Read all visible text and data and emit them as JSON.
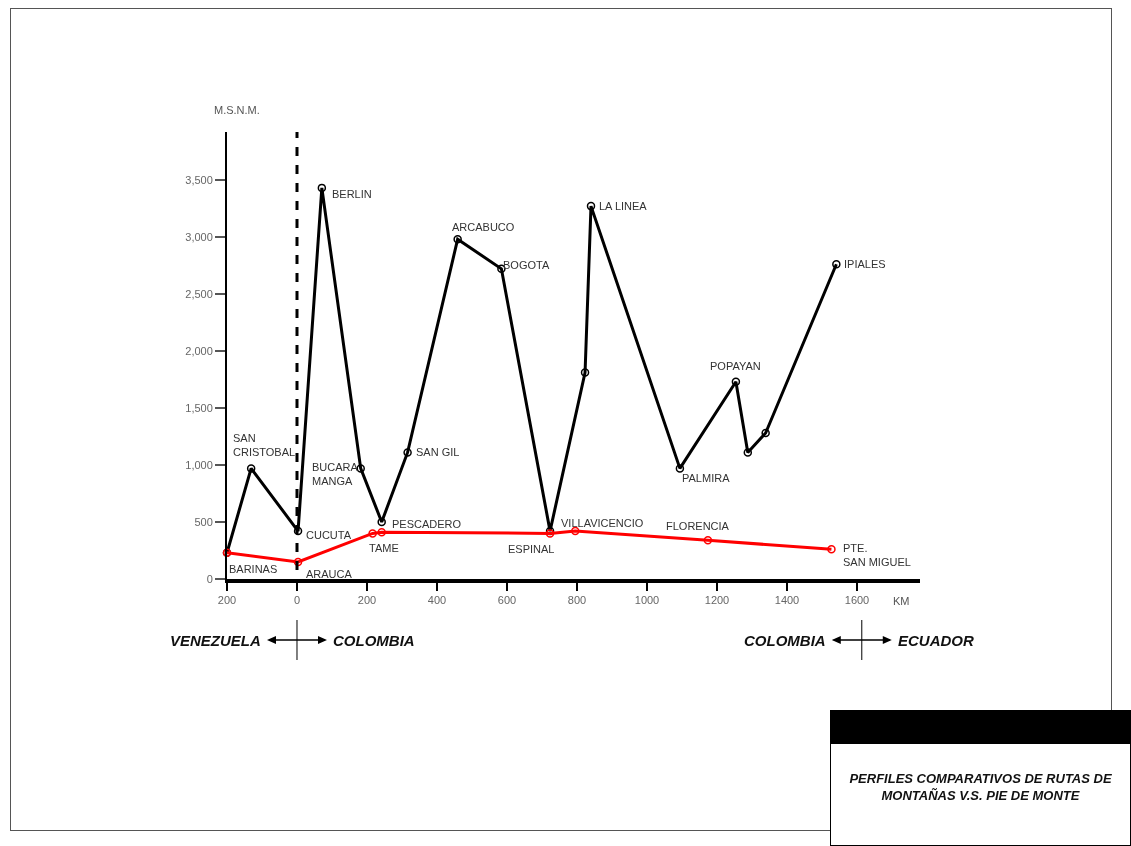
{
  "chart_data": {
    "type": "line",
    "title": "PERFILES COMPARATIVOS DE RUTAS DE MONTAÑAS V.S. PIE DE MONTE",
    "xlabel": "KM",
    "ylabel": "M.S.N.M.",
    "series": [
      {
        "color": "#000000",
        "x": [
          -200,
          -131,
          3,
          71,
          182,
          242,
          316,
          459,
          584,
          723,
          823,
          840,
          1094,
          1254,
          1288,
          1339,
          1541
        ],
        "values": [
          230,
          970,
          420,
          3430,
          970,
          500,
          1110,
          2980,
          2720,
          420,
          1810,
          3270,
          970,
          1730,
          1110,
          1280,
          2760
        ]
      },
      {
        "color": "#ff0000",
        "x": [
          -200,
          3,
          216,
          242,
          723,
          795,
          1174,
          1527
        ],
        "values": [
          230,
          150,
          400,
          410,
          400,
          420,
          340,
          260
        ]
      }
    ],
    "marker": "circle",
    "line_style": "solid",
    "grid": false,
    "xlim": [
      -200,
      1780
    ],
    "ylim": [
      0,
      3920
    ],
    "xticks": [
      {
        "value": -200,
        "label": "200"
      },
      0,
      200,
      400,
      600,
      800,
      1000,
      1200,
      1400,
      1600
    ],
    "yticks": [
      0,
      500,
      {
        "value": 1000,
        "label": "1,000"
      },
      {
        "value": 1500,
        "label": "1,500"
      },
      {
        "value": 2000,
        "label": "2,000"
      },
      {
        "value": 2500,
        "label": "2,500"
      },
      {
        "value": 3000,
        "label": "3,000"
      },
      {
        "value": 3500,
        "label": "3,500"
      }
    ],
    "ref_lines": [
      {
        "axis": "x",
        "value": 0,
        "line_style": "dashed",
        "color": "#000000"
      }
    ],
    "annotations": [
      {
        "text": "BARINAS",
        "x": -200,
        "y": 228
      },
      {
        "text": "SAN\nCRISTOBAL",
        "x": -131,
        "y": 974
      },
      {
        "text": "CUCUTA",
        "x": 3,
        "y": 420
      },
      {
        "text": "BERLIN",
        "x": 71,
        "y": 3430
      },
      {
        "text": "BUCARA\nMANGA",
        "x": 182,
        "y": 965
      },
      {
        "text": "PESCADERO",
        "x": 242,
        "y": 500
      },
      {
        "text": "SAN GIL",
        "x": 316,
        "y": 1114
      },
      {
        "text": "ARCABUCO",
        "x": 459,
        "y": 2982
      },
      {
        "text": "BOGOTA",
        "x": 584,
        "y": 2719
      },
      {
        "text": "ESPINAL",
        "x": 723,
        "y": 403
      },
      {
        "text": "LA LINEA",
        "x": 840,
        "y": 3272
      },
      {
        "text": "PALMIRA",
        "x": 1094,
        "y": 974
      },
      {
        "text": "POPAYAN",
        "x": 1254,
        "y": 1728
      },
      {
        "text": "IPIALES",
        "x": 1541,
        "y": 2763
      },
      {
        "text": "ARAUCA",
        "x": 3,
        "y": 149
      },
      {
        "text": "TAME",
        "x": 216,
        "y": 395
      },
      {
        "text": "VILLAVICENCIO",
        "x": 795,
        "y": 421
      },
      {
        "text": "FLORENCIA",
        "x": 1174,
        "y": 342
      },
      {
        "text": "PTE.\nSAN MIGUEL",
        "x": 1527,
        "y": 263
      },
      "VENEZUELA",
      "COLOMBIA",
      "COLOMBIA",
      "ECUADOR"
    ]
  }
}
